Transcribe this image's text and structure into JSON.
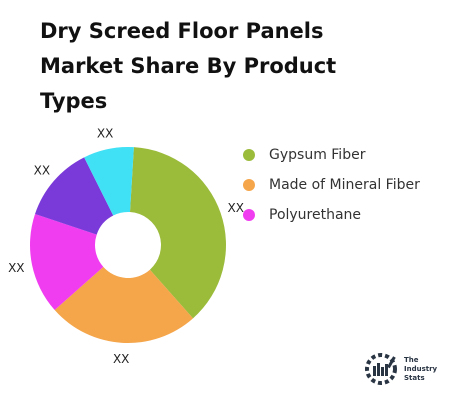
{
  "chart_data": {
    "type": "pie",
    "title": "Dry Screed Floor Panels Market Share By Product Types",
    "slices": [
      {
        "label": "Gypsum Fiber",
        "value": 36,
        "color": "#9bbb3b",
        "data_label": "XX"
      },
      {
        "label": "Made of Mineral Fiber",
        "value": 24,
        "color": "#f5a54a",
        "data_label": "XX"
      },
      {
        "label": "",
        "value": 16,
        "color": "#f03df0",
        "data_label": "XX"
      },
      {
        "label": "",
        "value": 12,
        "color": "#7a3ad9",
        "data_label": "XX"
      },
      {
        "label": "",
        "value": 8,
        "color": "#40e0f5",
        "data_label": "XX"
      }
    ],
    "legend": [
      {
        "label": "Gypsum Fiber",
        "color": "#9bbb3b"
      },
      {
        "label": "Made of Mineral Fiber",
        "color": "#f5a54a"
      },
      {
        "label": "Polyurethane",
        "color": "#f03df0"
      }
    ],
    "legend_position": "right",
    "donut": true
  },
  "logo": {
    "line1": "The",
    "line2": "Industry",
    "line3": "Stats",
    "icon": "factory-gear-icon",
    "color": "#2a3544"
  }
}
